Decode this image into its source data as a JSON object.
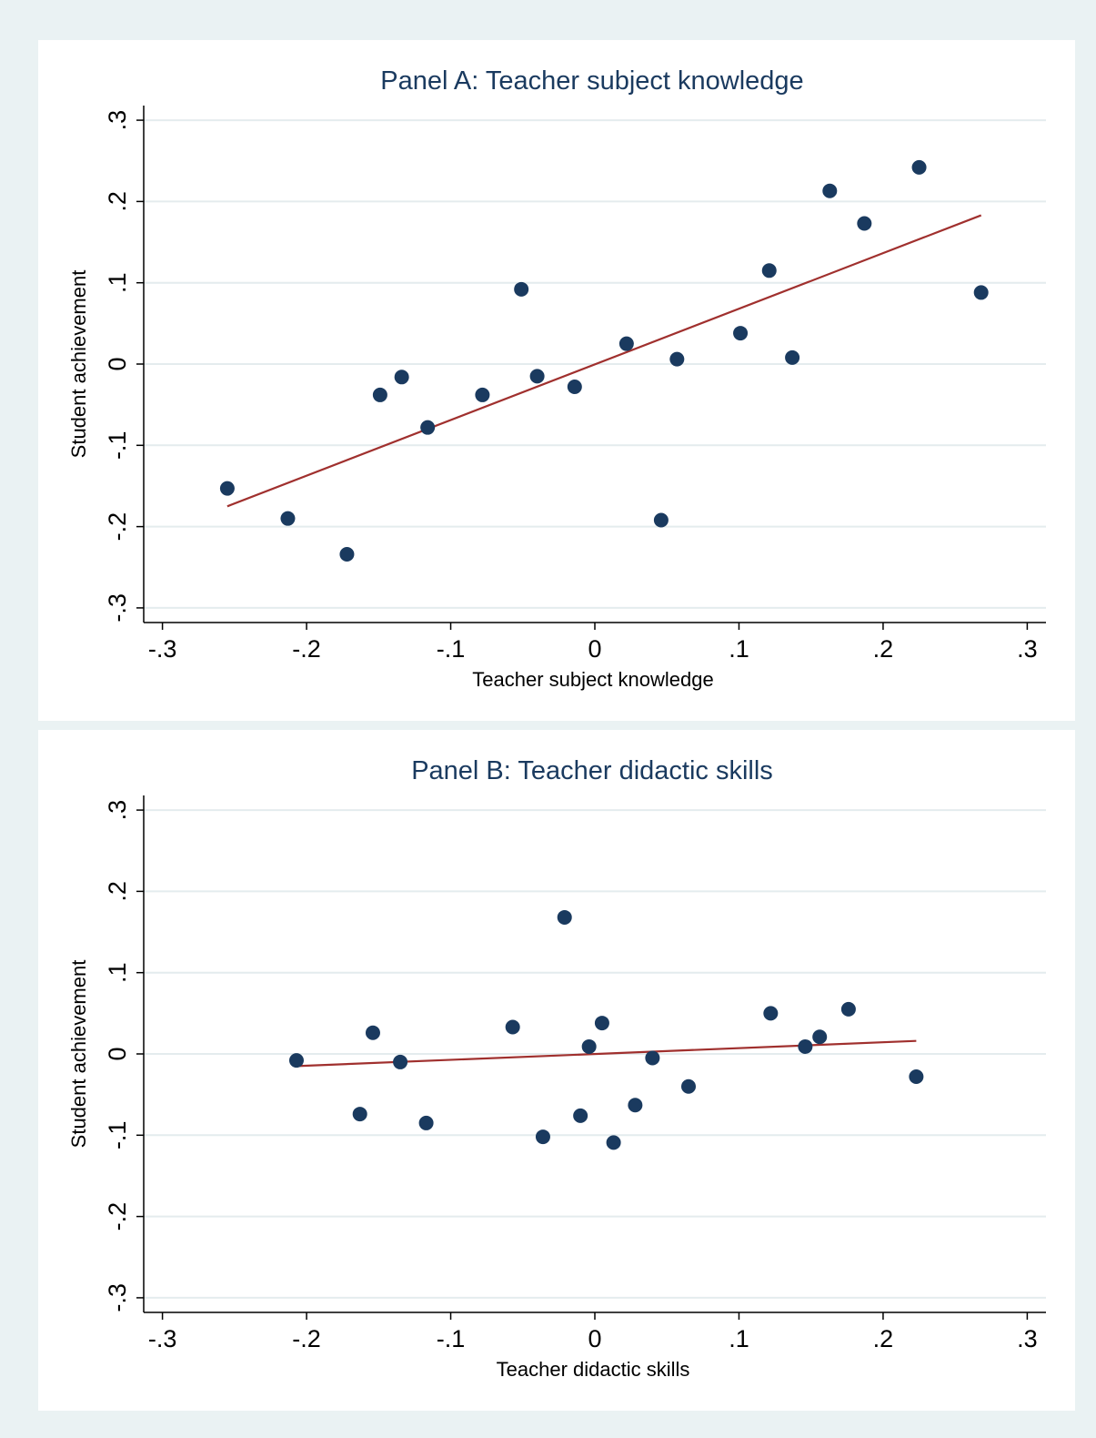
{
  "chart_data": [
    {
      "type": "scatter",
      "title": "Panel A: Teacher subject knowledge",
      "xlabel": "Teacher subject knowledge",
      "ylabel": "Student achievement",
      "xlim": [
        -0.3,
        0.3
      ],
      "ylim": [
        -0.3,
        0.3
      ],
      "xticks": [
        -0.3,
        -0.2,
        -0.1,
        0,
        0.1,
        0.2,
        0.3
      ],
      "yticks": [
        -0.3,
        -0.2,
        -0.1,
        0,
        0.1,
        0.2,
        0.3
      ],
      "xticklabels": [
        "-.3",
        "-.2",
        "-.1",
        "0",
        ".1",
        ".2",
        ".3"
      ],
      "yticklabels": [
        "-.3",
        "-.2",
        "-.1",
        "0",
        ".1",
        ".2",
        ".3"
      ],
      "grid": true,
      "colors": {
        "points": "#1a3a5f",
        "fit": "#a0302e",
        "grid": "#e4ecee"
      },
      "points": [
        [
          -0.255,
          -0.153
        ],
        [
          -0.213,
          -0.19
        ],
        [
          -0.172,
          -0.234
        ],
        [
          -0.149,
          -0.038
        ],
        [
          -0.134,
          -0.016
        ],
        [
          -0.116,
          -0.078
        ],
        [
          -0.078,
          -0.038
        ],
        [
          -0.051,
          0.092
        ],
        [
          -0.04,
          -0.015
        ],
        [
          -0.014,
          -0.028
        ],
        [
          0.022,
          0.025
        ],
        [
          0.046,
          -0.192
        ],
        [
          0.057,
          0.006
        ],
        [
          0.101,
          0.038
        ],
        [
          0.121,
          0.115
        ],
        [
          0.137,
          0.008
        ],
        [
          0.163,
          0.213
        ],
        [
          0.187,
          0.173
        ],
        [
          0.225,
          0.242
        ],
        [
          0.268,
          0.088
        ]
      ],
      "fit_line": {
        "x": [
          -0.255,
          0.268
        ],
        "y": [
          -0.175,
          0.183
        ]
      }
    },
    {
      "type": "scatter",
      "title": "Panel B: Teacher didactic skills",
      "xlabel": "Teacher didactic skills",
      "ylabel": "Student achievement",
      "xlim": [
        -0.3,
        0.3
      ],
      "ylim": [
        -0.3,
        0.3
      ],
      "xticks": [
        -0.3,
        -0.2,
        -0.1,
        0,
        0.1,
        0.2,
        0.3
      ],
      "yticks": [
        -0.3,
        -0.2,
        -0.1,
        0,
        0.1,
        0.2,
        0.3
      ],
      "xticklabels": [
        "-.3",
        "-.2",
        "-.1",
        "0",
        ".1",
        ".2",
        ".3"
      ],
      "yticklabels": [
        "-.3",
        "-.2",
        "-.1",
        "0",
        ".1",
        ".2",
        ".3"
      ],
      "grid": true,
      "colors": {
        "points": "#1a3a5f",
        "fit": "#a0302e",
        "grid": "#e4ecee"
      },
      "points": [
        [
          -0.207,
          -0.008
        ],
        [
          -0.163,
          -0.074
        ],
        [
          -0.154,
          0.026
        ],
        [
          -0.135,
          -0.01
        ],
        [
          -0.117,
          -0.085
        ],
        [
          -0.057,
          0.033
        ],
        [
          -0.036,
          -0.102
        ],
        [
          -0.021,
          0.168
        ],
        [
          -0.01,
          -0.076
        ],
        [
          -0.004,
          0.009
        ],
        [
          0.005,
          0.038
        ],
        [
          0.013,
          -0.109
        ],
        [
          0.028,
          -0.063
        ],
        [
          0.04,
          -0.005
        ],
        [
          0.065,
          -0.04
        ],
        [
          0.122,
          0.05
        ],
        [
          0.146,
          0.009
        ],
        [
          0.156,
          0.021
        ],
        [
          0.176,
          0.055
        ],
        [
          0.223,
          -0.028
        ]
      ],
      "fit_line": {
        "x": [
          -0.207,
          0.223
        ],
        "y": [
          -0.015,
          0.016
        ]
      }
    }
  ]
}
